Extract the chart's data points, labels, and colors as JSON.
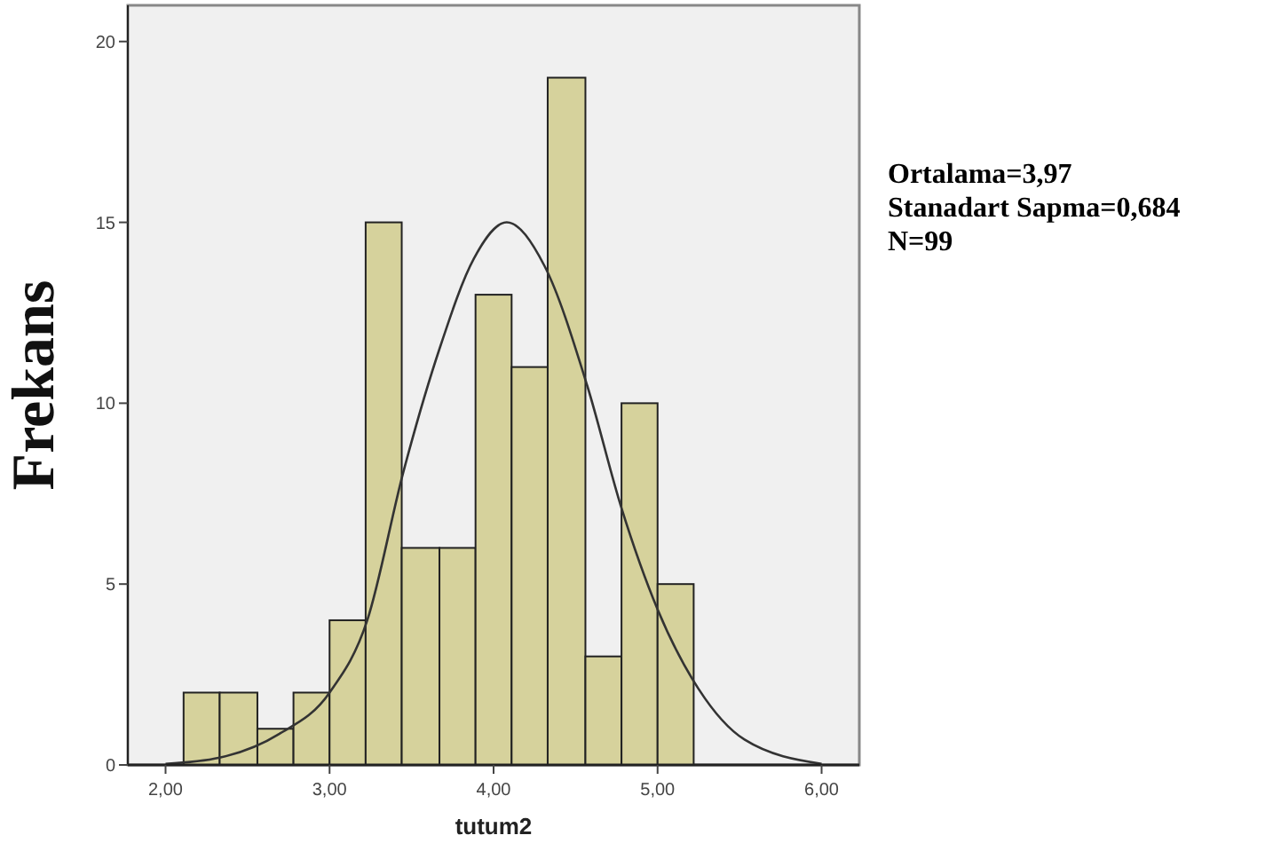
{
  "chart_data": {
    "type": "histogram",
    "xlabel": "tutum2",
    "ylabel": "Frekans",
    "annotations": [
      "Ortalama=3,97",
      "Stanadart Sapma=0,684",
      "N=99"
    ],
    "bins": [
      2.11,
      2.33,
      2.56,
      2.78,
      3.0,
      3.22,
      3.44,
      3.67,
      3.89,
      4.11,
      4.33,
      4.56,
      4.78,
      5.0,
      5.22
    ],
    "series": [
      {
        "color": "#d6d29c",
        "values": [
          2,
          2,
          1,
          2,
          4,
          15,
          6,
          6,
          13,
          11,
          19,
          3,
          10,
          5
        ]
      },
      {
        "type": "line",
        "color": "#333333",
        "x": [
          2.0,
          2.33,
          2.69,
          3.0,
          3.23,
          3.45,
          3.67,
          3.88,
          4.08,
          4.31,
          4.57,
          4.78,
          5.0,
          5.25,
          5.53,
          6.0
        ],
        "values": [
          0.03,
          0.2,
          0.85,
          2.0,
          4.0,
          8.1,
          11.5,
          14.0,
          15.0,
          13.8,
          10.5,
          7.1,
          4.3,
          2.1,
          0.7,
          0.03
        ]
      }
    ],
    "xlim": [
      1.77,
      6.23
    ],
    "ylim": [
      0,
      21
    ],
    "xticks": [
      {
        "value": 2,
        "label": "2,00"
      },
      {
        "value": 3,
        "label": "3,00"
      },
      {
        "value": 4,
        "label": "4,00"
      },
      {
        "value": 5,
        "label": "5,00"
      },
      {
        "value": 6,
        "label": "6,00"
      }
    ],
    "yticks": [
      0,
      5,
      10,
      15,
      20
    ],
    "grid": false
  }
}
